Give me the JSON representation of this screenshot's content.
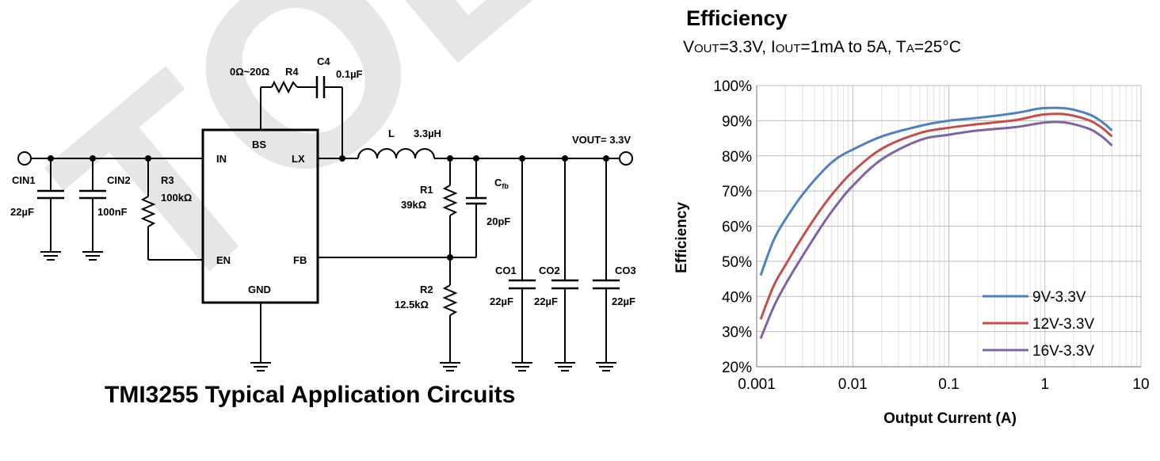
{
  "watermark": "TOLL",
  "circuit": {
    "title": "TMI3255 Typical Application Circuits",
    "ic_pins": {
      "in": "IN",
      "bs": "BS",
      "lx": "LX",
      "en": "EN",
      "fb": "FB",
      "gnd": "GND"
    },
    "components": {
      "cin1": {
        "name": "CIN1",
        "value": "22µF"
      },
      "cin2": {
        "name": "CIN2",
        "value": "100nF"
      },
      "r3": {
        "name": "R3",
        "value": "100kΩ"
      },
      "r4": {
        "name": "R4",
        "value": "0Ω~20Ω"
      },
      "c4": {
        "name": "C4",
        "value": "0.1µF"
      },
      "l": {
        "name": "L",
        "value": "3.3µH"
      },
      "r1": {
        "name": "R1",
        "value": "39kΩ"
      },
      "r2": {
        "name": "R2",
        "value": "12.5kΩ"
      },
      "cfb": {
        "name": "C",
        "sub": "fb",
        "value": "20pF"
      },
      "co1": {
        "name": "CO1",
        "value": "22µF"
      },
      "co2": {
        "name": "CO2",
        "value": "22µF"
      },
      "co3": {
        "name": "CO3",
        "value": "22µF"
      }
    },
    "vout_label": "VOUT= 3.3V"
  },
  "chart_data": {
    "type": "line",
    "title": "Efficiency",
    "subtitle": {
      "v": "V",
      "v_sub": "OUT",
      "v_val": "=3.3V, ",
      "i": "I",
      "i_sub": "OUT",
      "i_val": "=1mA to 5A, ",
      "t": "T",
      "t_sub": "A",
      "t_val": "=25°C"
    },
    "xlabel": "Output Current (A)",
    "ylabel": "Efficiency",
    "xscale": "log",
    "xlim": [
      0.001,
      10
    ],
    "ylim": [
      20,
      100
    ],
    "xticks": [
      "0.001",
      "0.01",
      "0.1",
      "1",
      "10"
    ],
    "yticks": [
      "20%",
      "30%",
      "40%",
      "50%",
      "60%",
      "70%",
      "80%",
      "90%",
      "100%"
    ],
    "legend_position": "bottom-right",
    "series": [
      {
        "name": "9V-3.3V",
        "color": "#4f81bd",
        "x": [
          0.0011,
          0.0015,
          0.002,
          0.003,
          0.005,
          0.007,
          0.01,
          0.02,
          0.05,
          0.1,
          0.2,
          0.5,
          0.8,
          1.0,
          1.5,
          2,
          3,
          4,
          5
        ],
        "y": [
          46,
          56,
          62,
          69,
          76,
          79.5,
          81.8,
          85.5,
          88.5,
          90,
          90.8,
          92.2,
          93.3,
          93.6,
          93.6,
          93.1,
          91.6,
          89.5,
          87.2
        ]
      },
      {
        "name": "12V-3.3V",
        "color": "#c0504d",
        "x": [
          0.0011,
          0.0015,
          0.002,
          0.003,
          0.005,
          0.007,
          0.01,
          0.02,
          0.05,
          0.1,
          0.2,
          0.5,
          0.8,
          1.0,
          1.5,
          2,
          3,
          4,
          5
        ],
        "y": [
          33.5,
          43,
          49,
          57,
          66,
          71,
          75.5,
          82,
          86.5,
          88,
          89,
          90.2,
          91.4,
          91.8,
          91.9,
          91.4,
          89.9,
          87.8,
          85.5
        ]
      },
      {
        "name": "16V-3.3V",
        "color": "#8064a2",
        "x": [
          0.0011,
          0.0015,
          0.002,
          0.003,
          0.005,
          0.007,
          0.01,
          0.02,
          0.05,
          0.1,
          0.2,
          0.5,
          0.8,
          1.0,
          1.5,
          2,
          3,
          4,
          5
        ],
        "y": [
          28,
          37,
          43.5,
          51.5,
          61,
          66.5,
          71.5,
          79,
          84.5,
          86,
          87.2,
          88.2,
          89.1,
          89.5,
          89.6,
          89,
          87.5,
          85.3,
          82.9
        ]
      }
    ]
  }
}
